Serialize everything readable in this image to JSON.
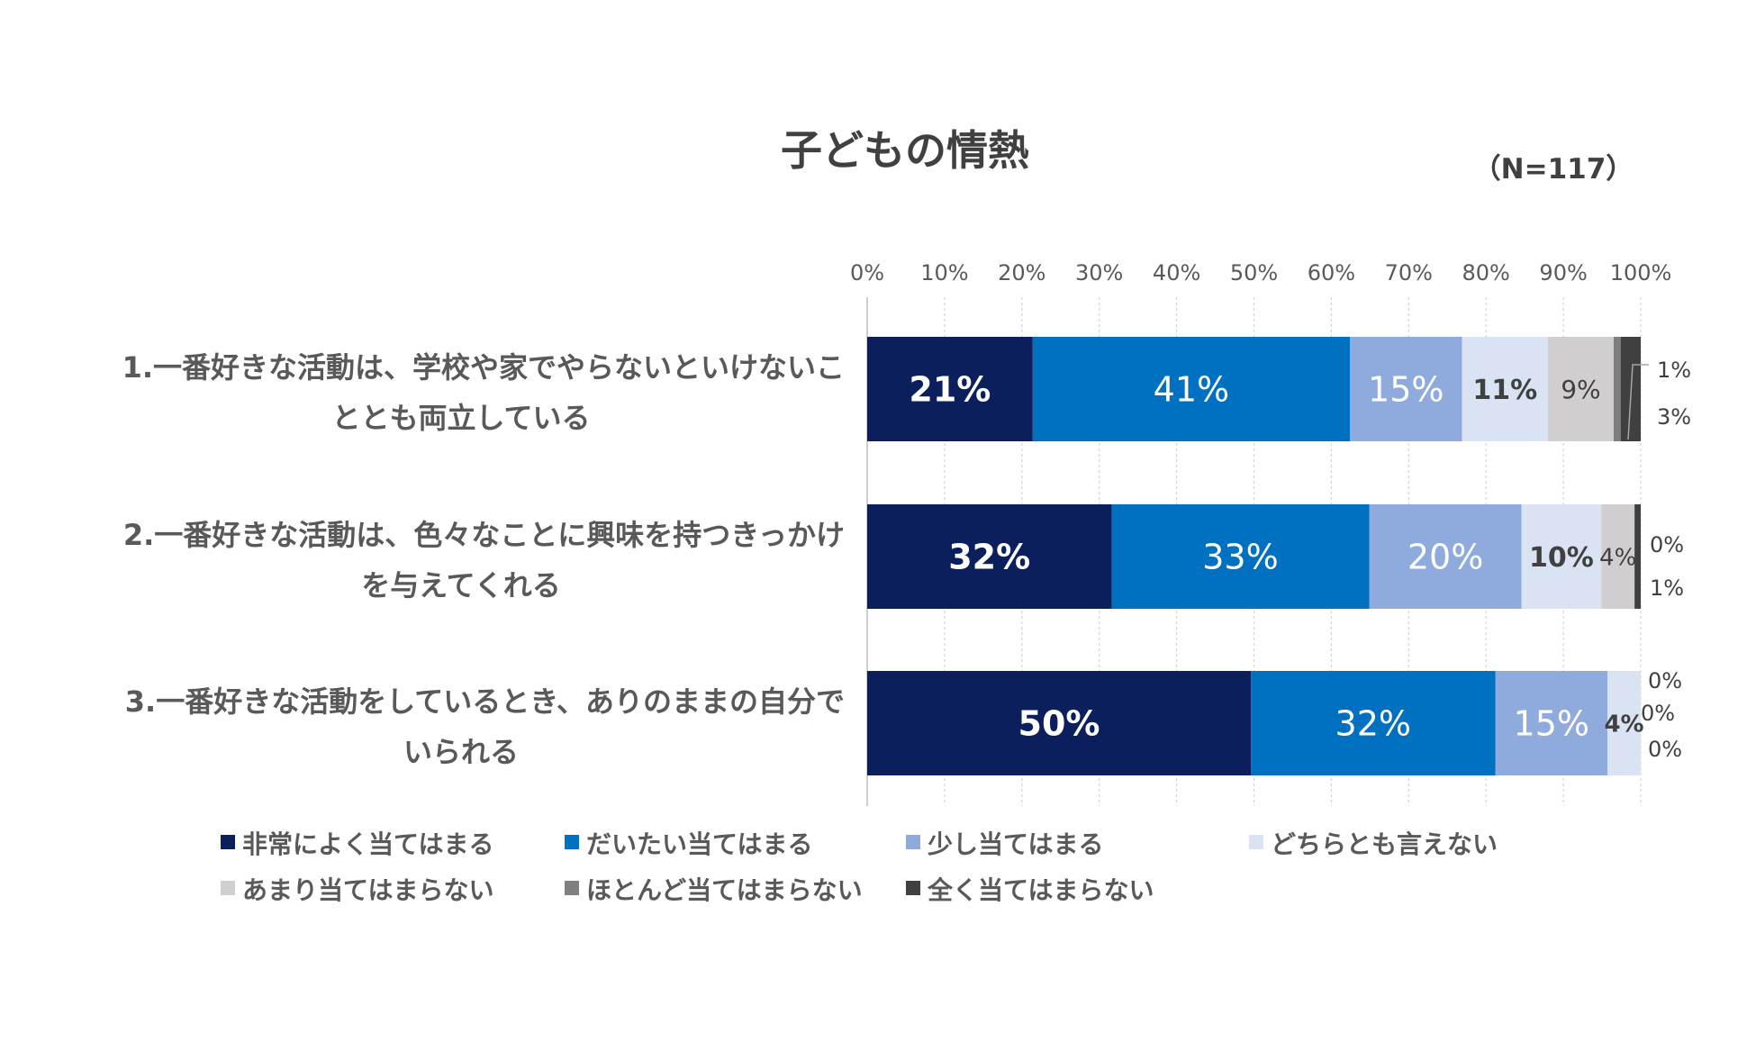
{
  "chart_data": {
    "type": "bar",
    "orientation": "horizontal-stacked-100",
    "title": "子どもの情熱",
    "subtitle": "（N=117）",
    "xlim": [
      0,
      100
    ],
    "x_ticks": [
      "0%",
      "10%",
      "20%",
      "30%",
      "40%",
      "50%",
      "60%",
      "70%",
      "80%",
      "90%",
      "100%"
    ],
    "grid": true,
    "legend_position": "bottom",
    "categories": [
      {
        "line1": "1.一番好きな活動は、学校や家でやらないといけないこ",
        "line2": "ととも両立している"
      },
      {
        "line1": "2.一番好きな活動は、色々なことに興味を持つきっかけ",
        "line2": "を与えてくれる"
      },
      {
        "line1": "3.一番好きな活動をしているとき、ありのままの自分で",
        "line2": "いられる"
      }
    ],
    "series": [
      {
        "name": "非常によく当てはまる",
        "color": "#0b1f5c",
        "values": [
          21.4,
          31.6,
          49.6
        ],
        "labels": [
          "21%",
          "32%",
          "50%"
        ]
      },
      {
        "name": "だいたい当てはまる",
        "color": "#0070c0",
        "values": [
          41.0,
          33.3,
          31.6
        ],
        "labels": [
          "41%",
          "33%",
          "32%"
        ]
      },
      {
        "name": "少し当てはまる",
        "color": "#8faadc",
        "values": [
          14.5,
          19.7,
          14.5
        ],
        "labels": [
          "15%",
          "20%",
          "15%"
        ]
      },
      {
        "name": "どちらとも言えない",
        "color": "#dae3f3",
        "values": [
          11.1,
          10.3,
          4.3
        ],
        "labels": [
          "11%",
          "10%",
          "4%"
        ]
      },
      {
        "name": "あまり当てはまらない",
        "color": "#d0cece",
        "values": [
          8.5,
          4.3,
          0.0
        ],
        "labels": [
          "9%",
          "4%",
          "0%"
        ]
      },
      {
        "name": "ほとんど当てはまらない",
        "color": "#7f7f7f",
        "values": [
          0.9,
          0.0,
          0.0
        ],
        "labels": [
          "1%",
          "0%",
          "0%"
        ]
      },
      {
        "name": "全く当てはまらない",
        "color": "#404040",
        "values": [
          2.6,
          0.8,
          0.0
        ],
        "labels": [
          "3%",
          "1%",
          "0%"
        ]
      }
    ]
  }
}
